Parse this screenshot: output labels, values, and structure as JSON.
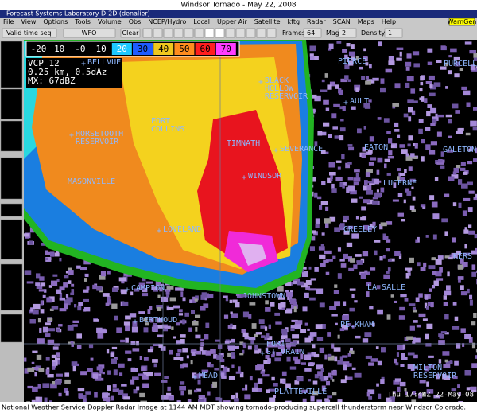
{
  "page_title": "Windsor Tornado - May 22, 2008",
  "window_title": "Forecast Systems Laboratory D-2D (denalier)",
  "menu": [
    "File",
    "View",
    "Options",
    "Tools",
    "Volume",
    "Obs",
    "NCEP/Hydro",
    "Local",
    "Upper Air",
    "Satellite",
    "kftg",
    "Radar",
    "SCAN",
    "Maps",
    "Help"
  ],
  "warngen": "WarnGen",
  "toolbar": {
    "time_mode": "Valid time seq",
    "scale": "WFO",
    "clear": "Clear",
    "frames_label": "Frames:",
    "frames": "64",
    "mag_label": "Mag:",
    "mag": "2",
    "density_label": "Density:",
    "density": "1"
  },
  "color_scale": [
    "-20",
    "10",
    "-0",
    "10",
    "20",
    "30",
    "40",
    "50",
    "60",
    "70"
  ],
  "radar_info": [
    "VCP 12",
    "0.25 km, 0.5dAz",
    "MX: 67dBZ"
  ],
  "places": [
    "BELLVUE",
    "PIERCE",
    "PURCELL",
    "BLACK",
    "HOLLOW",
    "RESERVOIR",
    "AULT",
    "FORT",
    "COLLINS",
    "HORSETOOTH",
    "RESERVOIR",
    "TIMNATH",
    "SEVERANCE",
    "EATON",
    "GALETON",
    "WINDSOR",
    "MASONVILLE",
    "LUCERNE",
    "LOVELAND",
    "GREELEY",
    "KERS",
    "CAMPION",
    "LA SALLE",
    "JOHNSTOWN",
    "BERTHOUD",
    "PELKHAM",
    "FORT",
    "ST VRAIN",
    "MILTON",
    "RESERVOIR",
    "MEAD",
    "PLATTEVILLE"
  ],
  "timestamp": "Thu 17:44Z 22-May-08",
  "caption": "National Weather Service Doppler Radar Image at 1144 AM  MDT showing tornado-producing supercell thunderstorm near Windsor Colorado."
}
